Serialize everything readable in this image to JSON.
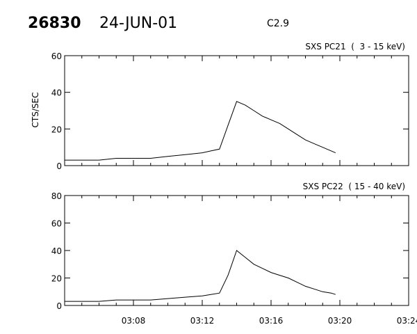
{
  "header": {
    "event_id": "26830",
    "date": "24-JUN-01",
    "flare_class": "C2.9"
  },
  "chart_data": [
    {
      "type": "line",
      "title": "SXS PC21  (  3 - 15 keV)",
      "ylabel": "CTS/SEC",
      "xlabel": "",
      "xlim": [
        "03:04",
        "03:24"
      ],
      "ylim": [
        0,
        60
      ],
      "y_ticks": [
        0,
        20,
        40,
        60
      ],
      "x_ticks": [],
      "grid": false,
      "series": [
        {
          "x": [
            "03:04",
            "03:05",
            "03:06",
            "03:07",
            "03:08",
            "03:09",
            "03:10",
            "03:11",
            "03:12",
            "03:12:30",
            "03:13",
            "03:13:30",
            "03:14",
            "03:14:30",
            "03:15",
            "03:15:30",
            "03:16",
            "03:16:30",
            "03:17",
            "03:17:30",
            "03:18",
            "03:18:30",
            "03:19",
            "03:19:30",
            "03:19:45"
          ],
          "values": [
            3,
            3,
            3,
            4,
            4,
            4,
            5,
            6,
            7,
            8,
            9,
            22,
            35,
            33,
            30,
            27,
            25,
            23,
            20,
            17,
            14,
            12,
            10,
            8,
            7
          ]
        }
      ]
    },
    {
      "type": "line",
      "title": "SXS PC22  ( 15 - 40 keV)",
      "ylabel": "",
      "xlabel": "",
      "xlim": [
        "03:04",
        "03:24"
      ],
      "ylim": [
        0,
        80
      ],
      "y_ticks": [
        0,
        20,
        40,
        60,
        80
      ],
      "x_ticks": [
        "03:08",
        "03:12",
        "03:16",
        "03:20",
        "03:24"
      ],
      "grid": false,
      "series": [
        {
          "x": [
            "03:04",
            "03:05",
            "03:06",
            "03:07",
            "03:08",
            "03:09",
            "03:10",
            "03:11",
            "03:12",
            "03:12:30",
            "03:13",
            "03:13:30",
            "03:14",
            "03:14:30",
            "03:15",
            "03:15:30",
            "03:16",
            "03:16:30",
            "03:17",
            "03:17:30",
            "03:18",
            "03:18:30",
            "03:19",
            "03:19:30",
            "03:19:45"
          ],
          "values": [
            3,
            3,
            3,
            4,
            4,
            4,
            5,
            6,
            7,
            8,
            9,
            22,
            40,
            35,
            30,
            27,
            24,
            22,
            20,
            17,
            14,
            12,
            10,
            9,
            8
          ]
        }
      ]
    }
  ]
}
